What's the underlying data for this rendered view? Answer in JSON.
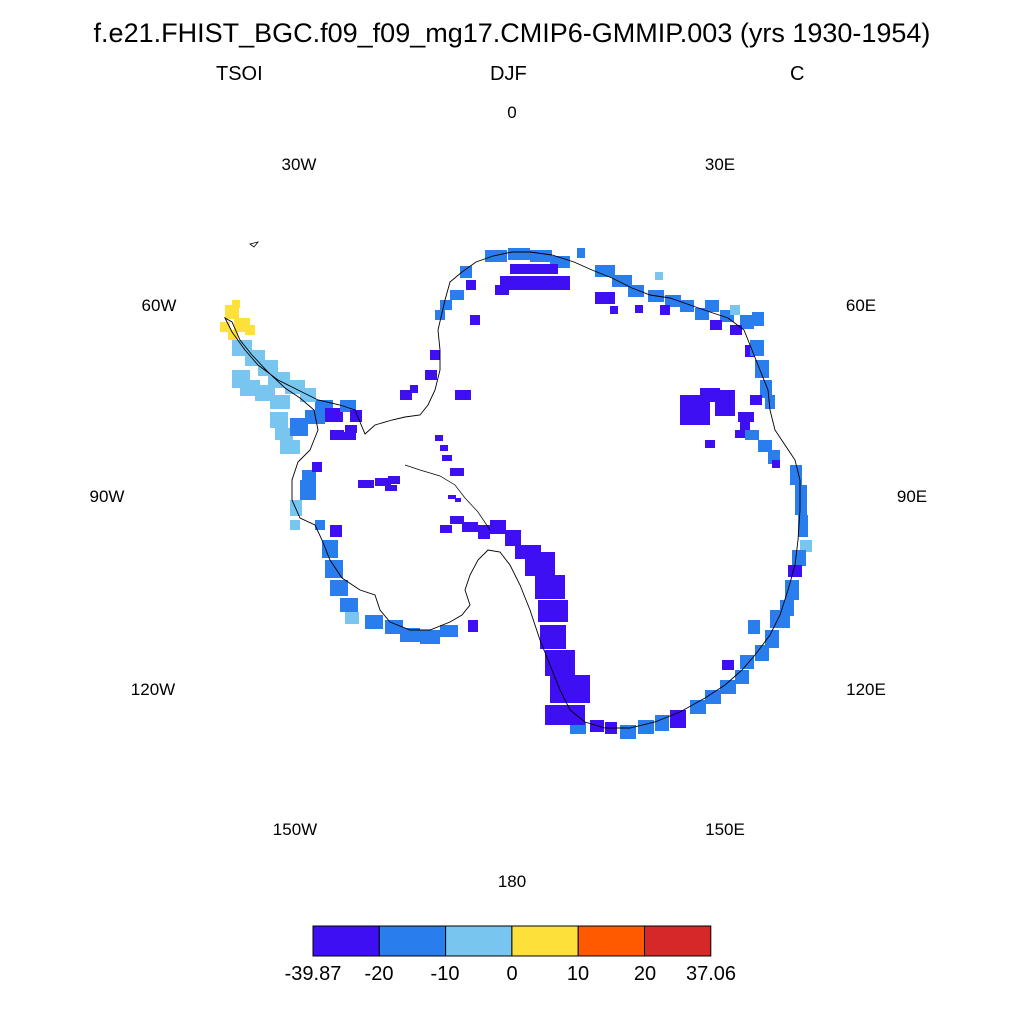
{
  "title": "f.e21.FHIST_BGC.f09_f09_mg17.CMIP6-GMMIP.003 (yrs 1930-1954)",
  "subtitle": {
    "left": "TSOI",
    "center": "DJF",
    "right": "C"
  },
  "longitude_labels": {
    "lon_0": "0",
    "lon_30e": "30E",
    "lon_60e": "60E",
    "lon_90e": "90E",
    "lon_120e": "120E",
    "lon_150e": "150E",
    "lon_180": "180",
    "lon_150w": "150W",
    "lon_120w": "120W",
    "lon_90w": "90W",
    "lon_60w": "60W",
    "lon_30w": "30W"
  },
  "colorbar": {
    "bins": [
      {
        "color": "#3d0ff2"
      },
      {
        "color": "#2a7ded"
      },
      {
        "color": "#78c5f0"
      },
      {
        "color": "#fde03a"
      },
      {
        "color": "#ff5a00"
      },
      {
        "color": "#d62828"
      }
    ],
    "tick_labels": {
      "t0": "-39.87",
      "t1": "-20",
      "t2": "-10",
      "t3": "0",
      "t4": "10",
      "t5": "20",
      "t6": "37.06"
    }
  },
  "map": {
    "projection": "south polar stereographic",
    "dominant_colors": {
      "strong_negative": "#3d0ff2",
      "negative": "#2a7ded",
      "weak_negative": "#78c5f0",
      "weak_positive": "#fde03a"
    }
  }
}
